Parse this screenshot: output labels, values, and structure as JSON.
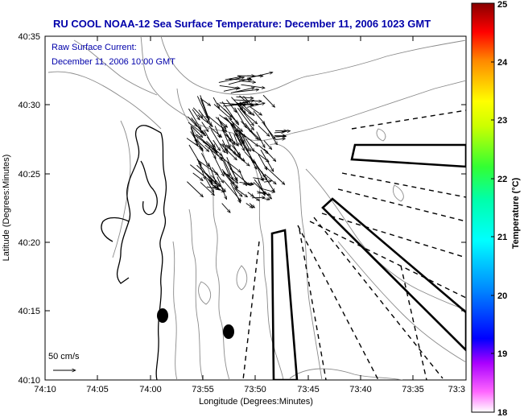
{
  "title": "RU COOL  NOAA-12  Sea Surface Temperature:  December 11, 2006 1023 GMT",
  "subtitle_line1": "Raw Surface Current:",
  "subtitle_line2": "December 11, 2006 10:00 GMT",
  "x_axis_label": "Longitude (Degrees:Minutes)",
  "y_axis_label": "Latitude (Degrees:Minutes)",
  "x_ticks": [
    "74:10",
    "74:05",
    "74:00",
    "73:55",
    "73:50",
    "73:45",
    "73:40",
    "73:35",
    "73:3"
  ],
  "y_ticks": [
    "40:35",
    "40:30",
    "40:25",
    "40:20",
    "40:15",
    "40:10"
  ],
  "colorbar": {
    "label": "Temperature (°C)",
    "ticks": [
      "25",
      "24",
      "23",
      "22",
      "21",
      "20",
      "19",
      "18"
    ],
    "range": [
      18,
      25
    ],
    "colors": [
      "#ff00ff",
      "#3300ff",
      "#00aaff",
      "#00ffcc",
      "#33ff33",
      "#ffff00",
      "#ff8800",
      "#ff0000",
      "#880000"
    ]
  },
  "scale_label": "50 cm/s",
  "colors": {
    "text_blue": "#0000aa",
    "contour": "#888888",
    "coast": "#000000"
  }
}
